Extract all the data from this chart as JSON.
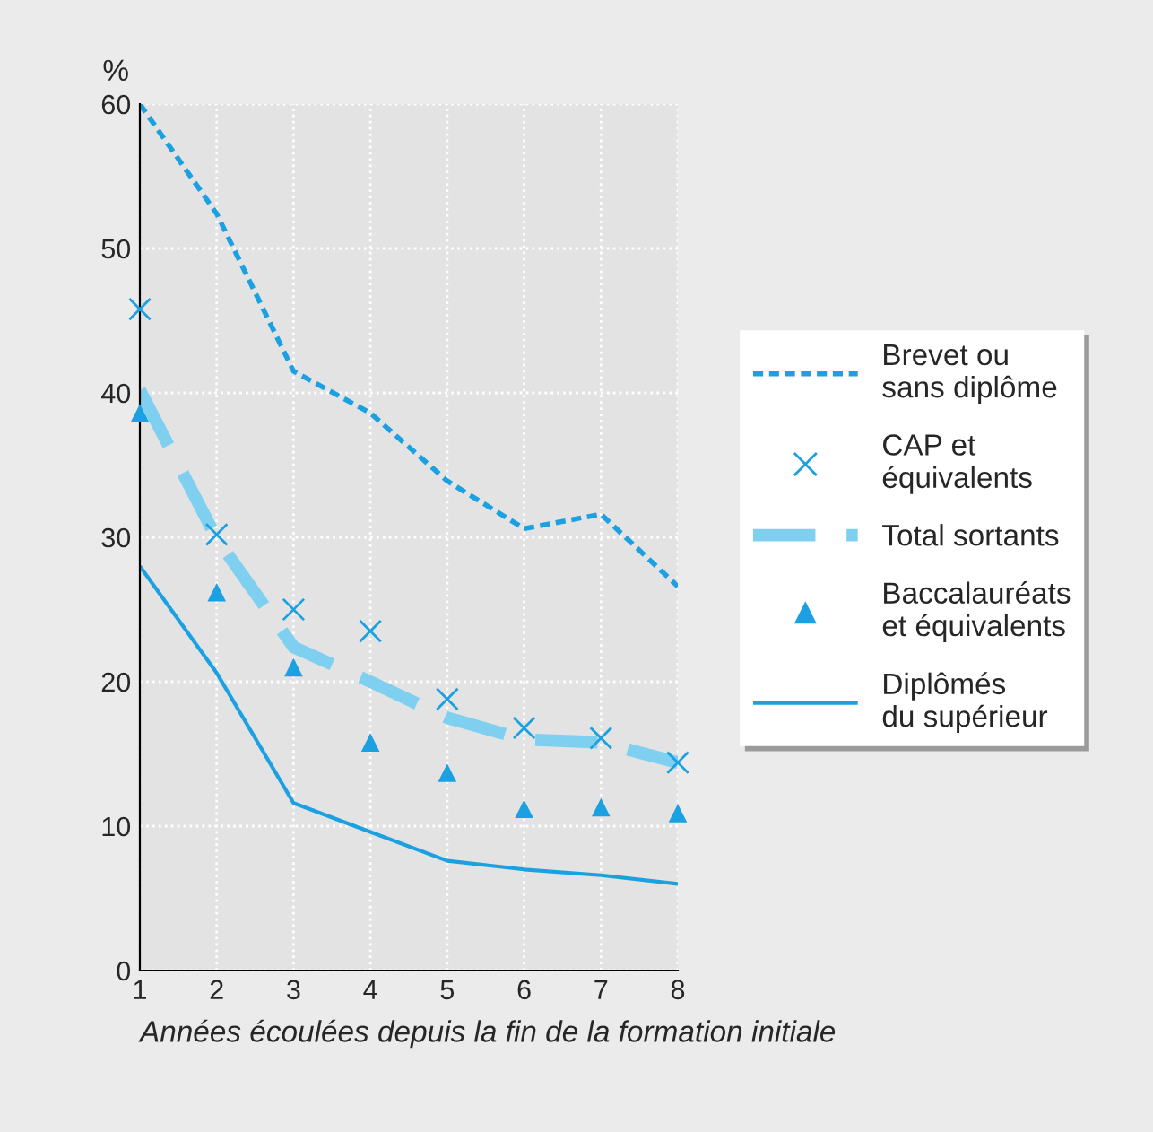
{
  "chart_data": {
    "type": "line",
    "ylabel": "%",
    "xlabel": "Années écoulées depuis la fin de la formation initiale",
    "x": [
      1,
      2,
      3,
      4,
      5,
      6,
      7,
      8
    ],
    "series": [
      {
        "name": "Brevet ou\nsans diplôme",
        "line_style": "dotted",
        "color": "#1ba1e2",
        "values": [
          60,
          52.4,
          41.5,
          38.6,
          33.9,
          30.6,
          31.6,
          26.6
        ]
      },
      {
        "name": "CAP et\néquivalents",
        "type": "scatter",
        "marker": "cross",
        "color": "#1ba1e2",
        "values": [
          45.8,
          30.2,
          25.0,
          23.5,
          18.8,
          16.8,
          16.1,
          14.4
        ]
      },
      {
        "name": "Total sortants",
        "line_style": "dashed",
        "color": "#7fd0f0",
        "values": [
          40.2,
          29.9,
          22.4,
          20.0,
          17.5,
          16.0,
          15.8,
          14.4
        ]
      },
      {
        "name": "Baccalauréats\net équivalents",
        "type": "scatter",
        "marker": "triangle",
        "color": "#1ba1e2",
        "values": [
          38.6,
          26.2,
          21.0,
          15.8,
          13.7,
          11.2,
          11.3,
          10.9
        ]
      },
      {
        "name": "Diplômés\ndu supérieur",
        "line_style": "solid",
        "color": "#1ba1e2",
        "values": [
          28.0,
          20.6,
          11.6,
          9.6,
          7.6,
          7.0,
          6.6,
          6.0
        ]
      }
    ],
    "xlim": [
      1,
      8
    ],
    "xticks": [
      1,
      2,
      3,
      4,
      5,
      6,
      7,
      8
    ],
    "ylim": [
      0,
      60
    ],
    "yticks": [
      0,
      10,
      20,
      30,
      40,
      50,
      60
    ],
    "grid": true,
    "legend": "right"
  }
}
